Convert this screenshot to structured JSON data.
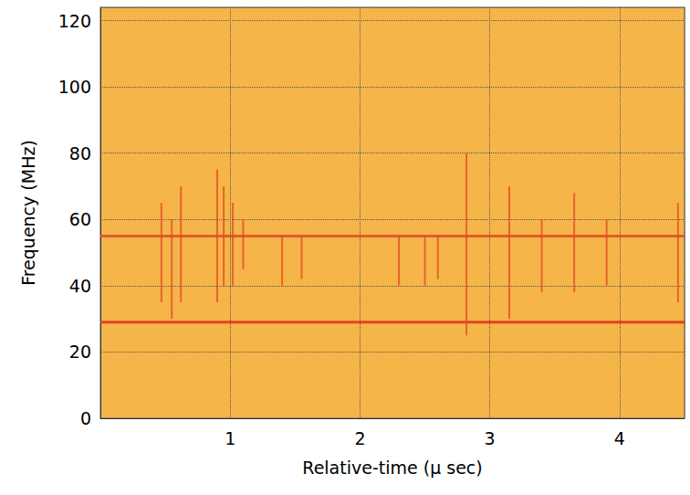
{
  "chart_data": {
    "type": "spectrogram",
    "xlabel": "Relative-time (μ sec)",
    "ylabel": "Frequency (MHz)",
    "xlim": [
      0,
      4.5
    ],
    "xticks": [
      1,
      2,
      3,
      4
    ],
    "ylim": [
      0,
      124
    ],
    "yticks": [
      0,
      20,
      40,
      60,
      80,
      100,
      120
    ],
    "grid": true,
    "lines": [
      {
        "frequency": 29,
        "color": "#d8341a"
      },
      {
        "frequency": 55,
        "color": "#d9502e"
      }
    ],
    "bursts": {
      "color": "#e04a24",
      "time": [
        0.47,
        0.55,
        0.62,
        0.9,
        0.95,
        1.02,
        1.1,
        1.4,
        1.55,
        2.3,
        2.5,
        2.6,
        2.82,
        3.15,
        3.4,
        3.65,
        3.9,
        4.45
      ],
      "fmin": [
        35,
        30,
        35,
        35,
        40,
        40,
        45,
        40,
        42,
        40,
        40,
        42,
        25,
        30,
        38,
        38,
        40,
        35
      ],
      "fmax": [
        65,
        60,
        70,
        75,
        70,
        65,
        60,
        55,
        55,
        55,
        55,
        55,
        80,
        70,
        60,
        68,
        60,
        65
      ]
    }
  }
}
